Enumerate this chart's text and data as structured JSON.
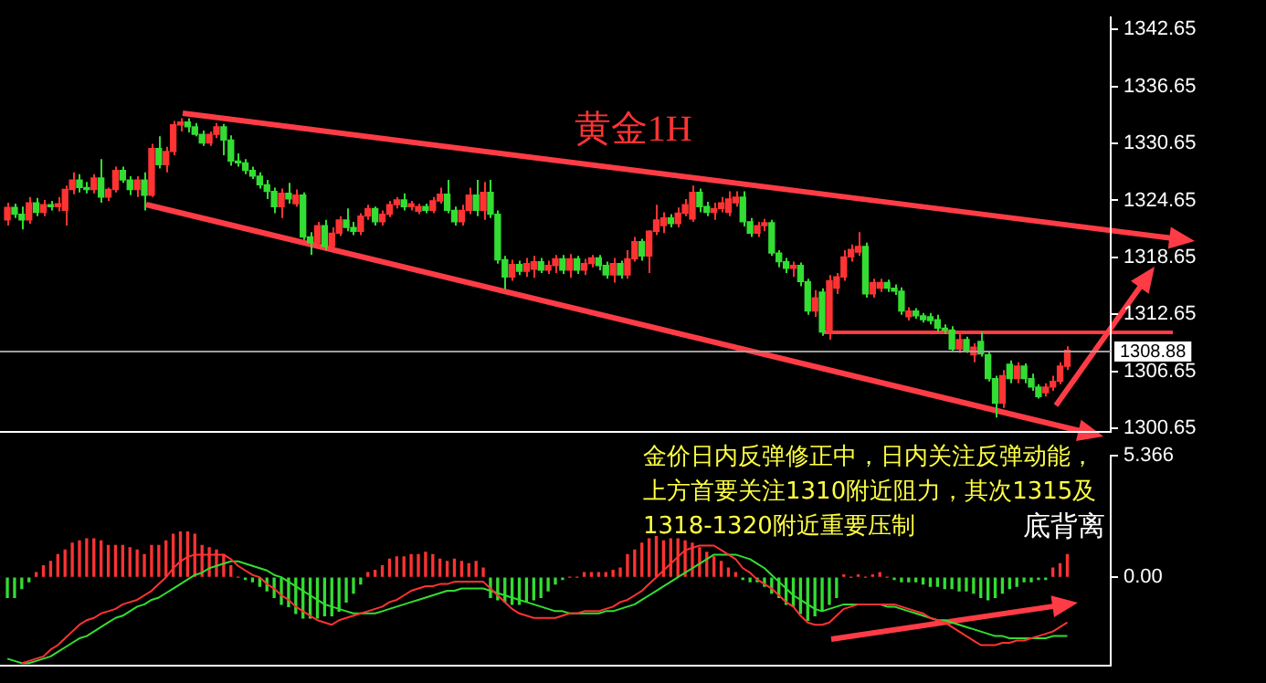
{
  "chart_data": [
    {
      "type": "candlestick",
      "title": "黄金1H",
      "categories": [
        null,
        null,
        null,
        null,
        null,
        null,
        null,
        null,
        null,
        null,
        null,
        null,
        null,
        null,
        null,
        null,
        null,
        null,
        null,
        null,
        null,
        null,
        null,
        null,
        null,
        null,
        null,
        null,
        null,
        null,
        null,
        null,
        null,
        null,
        null,
        null,
        null,
        null,
        null,
        null,
        null,
        null,
        null,
        null,
        null,
        null,
        null,
        null,
        null,
        null,
        null,
        null,
        null,
        null,
        null,
        null,
        null,
        null,
        null,
        null,
        null,
        null,
        null,
        null,
        null,
        null,
        null,
        null,
        null,
        null,
        null,
        null,
        null,
        null,
        null,
        null,
        null,
        null,
        null,
        null,
        null,
        null,
        null,
        null,
        null,
        null,
        null,
        null,
        null,
        null,
        null,
        null,
        null,
        null,
        null,
        null,
        null,
        null,
        null,
        null,
        null,
        null,
        null,
        null,
        null,
        null,
        null,
        null,
        null,
        null,
        null,
        null,
        null,
        null,
        null,
        null,
        null,
        null,
        null,
        null,
        null,
        null,
        null,
        null,
        null,
        null,
        null,
        null,
        null,
        null,
        null,
        null,
        null,
        null,
        null,
        null,
        null,
        null,
        null,
        null,
        null,
        null,
        null,
        null,
        null,
        null,
        null,
        null
      ],
      "ohlc": [
        [
          1322.6,
          1324.4,
          1322.0,
          1323.9
        ],
        [
          1323.9,
          1324.3,
          1322.8,
          1323.2
        ],
        [
          1323.2,
          1324.0,
          1321.6,
          1322.6
        ],
        [
          1322.6,
          1325.0,
          1322.2,
          1324.4
        ],
        [
          1324.4,
          1324.9,
          1323.0,
          1323.4
        ],
        [
          1323.4,
          1324.7,
          1323.0,
          1324.2
        ],
        [
          1324.2,
          1324.6,
          1323.6,
          1324.0
        ],
        [
          1324.0,
          1325.0,
          1323.5,
          1324.3
        ],
        [
          1323.6,
          1326.2,
          1322.0,
          1325.8
        ],
        [
          1325.8,
          1327.6,
          1325.3,
          1326.8
        ],
        [
          1326.8,
          1327.4,
          1325.5,
          1326.0
        ],
        [
          1326.0,
          1326.6,
          1325.4,
          1325.8
        ],
        [
          1325.8,
          1327.4,
          1325.4,
          1327.0
        ],
        [
          1327.0,
          1329.0,
          1324.4,
          1325.0
        ],
        [
          1325.0,
          1326.0,
          1324.6,
          1325.8
        ],
        [
          1325.8,
          1328.2,
          1325.5,
          1327.8
        ],
        [
          1327.8,
          1328.2,
          1326.5,
          1326.8
        ],
        [
          1326.8,
          1327.2,
          1325.2,
          1325.8
        ],
        [
          1325.8,
          1327.2,
          1325.0,
          1326.8
        ],
        [
          1326.8,
          1327.6,
          1323.6,
          1325.2
        ],
        [
          1325.2,
          1330.6,
          1325.0,
          1330.1
        ],
        [
          1330.1,
          1331.4,
          1328.0,
          1328.4
        ],
        [
          1328.4,
          1330.3,
          1327.6,
          1329.8
        ],
        [
          1329.8,
          1333.0,
          1329.4,
          1332.6
        ],
        [
          1332.6,
          1333.3,
          1331.9,
          1332.9
        ],
        [
          1332.9,
          1333.3,
          1331.8,
          1332.4
        ],
        [
          1332.4,
          1332.8,
          1331.4,
          1331.6
        ],
        [
          1331.6,
          1332.0,
          1330.4,
          1330.7
        ],
        [
          1330.7,
          1331.9,
          1330.4,
          1331.6
        ],
        [
          1331.6,
          1332.8,
          1331.2,
          1332.4
        ],
        [
          1332.4,
          1332.7,
          1329.4,
          1331.0
        ],
        [
          1331.0,
          1331.5,
          1328.3,
          1328.8
        ],
        [
          1328.8,
          1329.6,
          1328.2,
          1328.6
        ],
        [
          1328.6,
          1329.0,
          1327.4,
          1327.8
        ],
        [
          1327.8,
          1328.2,
          1326.9,
          1327.2
        ],
        [
          1327.2,
          1327.6,
          1325.9,
          1326.3
        ],
        [
          1326.3,
          1326.8,
          1324.8,
          1325.6
        ],
        [
          1325.6,
          1326.0,
          1323.3,
          1324.0
        ],
        [
          1324.0,
          1325.9,
          1322.8,
          1325.4
        ],
        [
          1325.4,
          1326.5,
          1324.3,
          1324.8
        ],
        [
          1324.3,
          1325.8,
          1324.0,
          1325.2
        ],
        [
          1325.2,
          1325.5,
          1320.5,
          1320.8
        ],
        [
          1320.8,
          1321.3,
          1318.9,
          1320.2
        ],
        [
          1320.2,
          1322.4,
          1319.8,
          1322.0
        ],
        [
          1322.0,
          1322.6,
          1319.4,
          1319.8
        ],
        [
          1319.8,
          1321.8,
          1319.5,
          1321.2
        ],
        [
          1321.2,
          1323.0,
          1320.9,
          1322.6
        ],
        [
          1322.6,
          1323.8,
          1321.4,
          1321.8
        ],
        [
          1321.8,
          1322.4,
          1321.0,
          1321.4
        ],
        [
          1321.4,
          1323.3,
          1321.0,
          1323.0
        ],
        [
          1323.0,
          1324.2,
          1322.6,
          1323.8
        ],
        [
          1323.8,
          1324.0,
          1322.0,
          1322.4
        ],
        [
          1322.4,
          1323.6,
          1322.0,
          1323.2
        ],
        [
          1323.2,
          1324.6,
          1322.9,
          1324.2
        ],
        [
          1324.2,
          1325.0,
          1323.8,
          1324.7
        ],
        [
          1324.7,
          1325.4,
          1323.6,
          1324.0
        ],
        [
          1324.0,
          1324.6,
          1323.6,
          1324.3
        ],
        [
          1323.5,
          1324.3,
          1323.2,
          1324.0
        ],
        [
          1324.0,
          1324.3,
          1323.3,
          1323.6
        ],
        [
          1323.6,
          1325.0,
          1323.3,
          1324.6
        ],
        [
          1324.6,
          1326.0,
          1324.3,
          1325.3
        ],
        [
          1325.3,
          1326.8,
          1323.3,
          1323.6
        ],
        [
          1323.6,
          1324.0,
          1322.0,
          1322.4
        ],
        [
          1322.4,
          1324.2,
          1322.0,
          1323.6
        ],
        [
          1323.6,
          1326.0,
          1323.2,
          1325.2
        ],
        [
          1325.2,
          1326.8,
          1323.0,
          1323.6
        ],
        [
          1323.6,
          1326.6,
          1322.6,
          1325.5
        ],
        [
          1325.5,
          1326.8,
          1322.8,
          1323.2
        ],
        [
          1323.2,
          1323.6,
          1318.0,
          1318.4
        ],
        [
          1318.4,
          1318.8,
          1315.3,
          1316.6
        ],
        [
          1316.6,
          1318.4,
          1316.2,
          1317.9
        ],
        [
          1317.9,
          1318.3,
          1316.8,
          1317.2
        ],
        [
          1317.2,
          1318.6,
          1316.6,
          1318.0
        ],
        [
          1317.4,
          1318.8,
          1316.5,
          1318.2
        ],
        [
          1318.2,
          1318.6,
          1317.0,
          1317.3
        ],
        [
          1317.3,
          1318.3,
          1316.9,
          1317.8
        ],
        [
          1317.8,
          1318.9,
          1317.0,
          1318.5
        ],
        [
          1318.5,
          1318.9,
          1316.9,
          1317.3
        ],
        [
          1317.3,
          1319.0,
          1316.5,
          1318.5
        ],
        [
          1318.5,
          1318.8,
          1316.9,
          1317.3
        ],
        [
          1317.3,
          1318.5,
          1316.8,
          1318.0
        ],
        [
          1318.0,
          1318.9,
          1317.6,
          1318.6
        ],
        [
          1318.6,
          1318.9,
          1317.3,
          1317.8
        ],
        [
          1317.8,
          1318.2,
          1316.4,
          1316.8
        ],
        [
          1316.8,
          1318.6,
          1316.0,
          1318.0
        ],
        [
          1318.0,
          1318.3,
          1316.4,
          1316.8
        ],
        [
          1316.8,
          1319.4,
          1316.4,
          1318.5
        ],
        [
          1318.5,
          1320.8,
          1318.2,
          1320.3
        ],
        [
          1320.3,
          1320.6,
          1318.3,
          1318.8
        ],
        [
          1318.8,
          1321.5,
          1317.0,
          1321.4
        ],
        [
          1321.4,
          1324.2,
          1321.0,
          1322.6
        ],
        [
          1322.0,
          1323.4,
          1321.2,
          1322.8
        ],
        [
          1322.8,
          1323.2,
          1321.8,
          1322.2
        ],
        [
          1322.2,
          1323.9,
          1321.8,
          1323.3
        ],
        [
          1323.3,
          1324.8,
          1323.0,
          1324.2
        ],
        [
          1322.7,
          1326.2,
          1322.4,
          1325.5
        ],
        [
          1325.5,
          1325.9,
          1323.4,
          1324.0
        ],
        [
          1324.0,
          1324.5,
          1323.0,
          1323.4
        ],
        [
          1323.4,
          1324.4,
          1322.6,
          1323.8
        ],
        [
          1323.8,
          1325.0,
          1323.4,
          1324.4
        ],
        [
          1323.4,
          1325.6,
          1323.0,
          1324.8
        ],
        [
          1324.4,
          1325.6,
          1324.0,
          1325.0
        ],
        [
          1325.0,
          1325.6,
          1321.9,
          1322.4
        ],
        [
          1322.4,
          1322.8,
          1320.8,
          1321.2
        ],
        [
          1321.2,
          1322.4,
          1320.8,
          1322.0
        ],
        [
          1322.0,
          1322.7,
          1321.4,
          1322.3
        ],
        [
          1322.3,
          1322.6,
          1318.8,
          1319.1
        ],
        [
          1319.1,
          1319.4,
          1317.6,
          1318.2
        ],
        [
          1318.2,
          1318.6,
          1317.0,
          1317.5
        ],
        [
          1317.5,
          1318.2,
          1316.6,
          1317.8
        ],
        [
          1317.8,
          1318.1,
          1315.6,
          1316.1
        ],
        [
          1316.1,
          1316.4,
          1312.6,
          1313.0
        ],
        [
          1313.0,
          1315.2,
          1312.4,
          1314.4
        ],
        [
          1315.0,
          1315.4,
          1310.4,
          1310.8
        ],
        [
          1310.8,
          1316.8,
          1310.0,
          1316.2
        ],
        [
          1315.4,
          1317.0,
          1314.8,
          1316.6
        ],
        [
          1316.6,
          1319.4,
          1316.2,
          1318.7
        ],
        [
          1318.7,
          1320.0,
          1318.2,
          1319.5
        ],
        [
          1319.2,
          1321.3,
          1318.8,
          1319.8
        ],
        [
          1319.8,
          1320.2,
          1314.4,
          1314.8
        ],
        [
          1314.8,
          1316.4,
          1314.4,
          1316.0
        ],
        [
          1315.4,
          1316.4,
          1315.0,
          1316.0
        ],
        [
          1316.0,
          1316.3,
          1315.0,
          1315.4
        ],
        [
          1315.4,
          1315.8,
          1314.7,
          1315.1
        ],
        [
          1315.1,
          1315.5,
          1312.6,
          1313.0
        ],
        [
          1312.4,
          1313.4,
          1312.0,
          1313.0
        ],
        [
          1313.0,
          1313.3,
          1312.2,
          1312.5
        ],
        [
          1312.5,
          1312.8,
          1311.8,
          1312.1
        ],
        [
          1312.4,
          1312.8,
          1311.6,
          1312.0
        ],
        [
          1312.1,
          1312.6,
          1310.8,
          1311.2
        ],
        [
          1311.2,
          1311.6,
          1310.6,
          1311.0
        ],
        [
          1311.0,
          1311.4,
          1308.8,
          1309.0
        ],
        [
          1309.0,
          1310.8,
          1308.6,
          1310.0
        ],
        [
          1310.0,
          1310.3,
          1308.6,
          1308.8
        ],
        [
          1308.4,
          1309.6,
          1307.6,
          1309.2
        ],
        [
          1309.8,
          1310.8,
          1308.2,
          1308.5
        ],
        [
          1308.4,
          1308.8,
          1305.6,
          1305.9
        ],
        [
          1305.9,
          1306.2,
          1301.8,
          1303.3
        ],
        [
          1303.3,
          1306.8,
          1302.8,
          1306.2
        ],
        [
          1307.4,
          1307.8,
          1305.4,
          1305.9
        ],
        [
          1305.9,
          1307.6,
          1305.4,
          1307.2
        ],
        [
          1307.2,
          1307.5,
          1305.4,
          1305.9
        ],
        [
          1305.9,
          1306.4,
          1304.6,
          1305.0
        ],
        [
          1305.0,
          1305.3,
          1303.8,
          1304.0
        ],
        [
          1304.4,
          1305.4,
          1304.0,
          1305.0
        ],
        [
          1305.0,
          1306.2,
          1304.6,
          1305.6
        ],
        [
          1305.6,
          1307.6,
          1305.3,
          1307.2
        ],
        [
          1307.2,
          1309.3,
          1306.8,
          1308.88
        ]
      ],
      "colors": [
        "#ff3333",
        "#33dd33",
        "#33dd33",
        "#ff3333",
        "#33dd33",
        "#ff3333",
        "#33dd33",
        "#ff3333",
        "#ff3333",
        "#ff3333",
        "#33dd33",
        "#33dd33",
        "#ff3333",
        "#33dd33",
        "#ff3333",
        "#ff3333",
        "#33dd33",
        "#33dd33",
        "#ff3333",
        "#33dd33",
        "#ff3333",
        "#33dd33",
        "#ff3333",
        "#ff3333",
        "#ff3333",
        "#33dd33",
        "#33dd33",
        "#33dd33",
        "#ff3333",
        "#ff3333",
        "#33dd33",
        "#33dd33",
        "#33dd33",
        "#33dd33",
        "#33dd33",
        "#33dd33",
        "#33dd33",
        "#33dd33",
        "#ff3333",
        "#33dd33",
        "#ff3333",
        "#33dd33",
        "#33dd33",
        "#ff3333",
        "#33dd33",
        "#ff3333",
        "#ff3333",
        "#33dd33",
        "#33dd33",
        "#ff3333",
        "#ff3333",
        "#33dd33",
        "#ff3333",
        "#ff3333",
        "#ff3333",
        "#33dd33",
        "#ff3333",
        "#ff3333",
        "#33dd33",
        "#ff3333",
        "#ff3333",
        "#33dd33",
        "#33dd33",
        "#ff3333",
        "#ff3333",
        "#33dd33",
        "#ff3333",
        "#33dd33",
        "#33dd33",
        "#33dd33",
        "#ff3333",
        "#33dd33",
        "#ff3333",
        "#ff3333",
        "#33dd33",
        "#ff3333",
        "#ff3333",
        "#33dd33",
        "#ff3333",
        "#33dd33",
        "#ff3333",
        "#ff3333",
        "#33dd33",
        "#33dd33",
        "#ff3333",
        "#33dd33",
        "#ff3333",
        "#ff3333",
        "#33dd33",
        "#ff3333",
        "#ff3333",
        "#ff3333",
        "#33dd33",
        "#ff3333",
        "#ff3333",
        "#ff3333",
        "#33dd33",
        "#33dd33",
        "#ff3333",
        "#ff3333",
        "#ff3333",
        "#ff3333",
        "#33dd33",
        "#33dd33",
        "#ff3333",
        "#ff3333",
        "#33dd33",
        "#33dd33",
        "#33dd33",
        "#ff3333",
        "#33dd33",
        "#33dd33",
        "#ff3333",
        "#33dd33",
        "#ff3333",
        "#ff3333",
        "#ff3333",
        "#ff3333",
        "#ff3333",
        "#33dd33",
        "#ff3333",
        "#ff3333",
        "#33dd33",
        "#33dd33",
        "#33dd33",
        "#ff3333",
        "#33dd33",
        "#33dd33",
        "#33dd33",
        "#33dd33",
        "#33dd33",
        "#33dd33",
        "#ff3333",
        "#33dd33",
        "#ff3333",
        "#33dd33",
        "#33dd33",
        "#33dd33",
        "#ff3333",
        "#33dd33",
        "#ff3333",
        "#33dd33",
        "#33dd33",
        "#33dd33",
        "#ff3333",
        "#ff3333",
        "#ff3333",
        "#ff3333"
      ],
      "ylim": [
        1300.3,
        1343.9
      ],
      "yticks": [
        1300.65,
        1306.65,
        1312.65,
        1318.65,
        1324.65,
        1330.65,
        1336.65,
        1342.65
      ],
      "ref_lines": [
        {
          "axis": "y",
          "value": 1308.88,
          "label": "1308.88",
          "color": "#a0a0a0"
        }
      ]
    },
    {
      "type": "bar",
      "categories": [
        null,
        null,
        null,
        null,
        null,
        null,
        null,
        null,
        null,
        null,
        null,
        null,
        null,
        null,
        null,
        null,
        null,
        null,
        null,
        null,
        null,
        null,
        null,
        null,
        null,
        null,
        null,
        null,
        null,
        null,
        null,
        null,
        null,
        null,
        null,
        null,
        null,
        null,
        null,
        null,
        null,
        null,
        null,
        null,
        null,
        null,
        null,
        null,
        null,
        null,
        null,
        null,
        null,
        null,
        null,
        null,
        null,
        null,
        null,
        null,
        null,
        null,
        null,
        null,
        null,
        null,
        null,
        null,
        null,
        null,
        null,
        null,
        null,
        null,
        null,
        null,
        null,
        null,
        null,
        null,
        null,
        null,
        null,
        null,
        null,
        null,
        null,
        null,
        null,
        null,
        null,
        null,
        null,
        null,
        null,
        null,
        null,
        null,
        null,
        null,
        null,
        null,
        null,
        null,
        null,
        null,
        null,
        null,
        null,
        null,
        null,
        null,
        null,
        null,
        null,
        null,
        null,
        null,
        null,
        null,
        null,
        null,
        null,
        null,
        null,
        null,
        null,
        null,
        null,
        null,
        null,
        null,
        null,
        null,
        null,
        null,
        null,
        null,
        null,
        null,
        null,
        null,
        null,
        null,
        null,
        null,
        null,
        null
      ],
      "series": [
        {
          "type": "bar",
          "values": [
            -0.9,
            -0.9,
            -0.5,
            -0.2,
            0.2,
            0.5,
            0.7,
            1.0,
            1.2,
            1.5,
            1.6,
            1.7,
            1.7,
            1.6,
            1.4,
            1.4,
            1.4,
            1.3,
            1.2,
            1.0,
            1.4,
            1.4,
            1.6,
            1.9,
            2.0,
            2.0,
            1.9,
            1.4,
            1.3,
            1.2,
            1.0,
            0.5,
            0.0,
            -0.1,
            -0.2,
            -0.4,
            -0.6,
            -0.9,
            -1.2,
            -1.3,
            -1.6,
            -1.8,
            -1.8,
            -1.8,
            -1.7,
            -1.7,
            -1.5,
            -1.1,
            -0.7,
            -0.3,
            0.2,
            0.3,
            0.5,
            0.8,
            0.9,
            0.9,
            1.0,
            1.0,
            1.1,
            1.0,
            0.8,
            0.7,
            0.8,
            0.7,
            0.6,
            0.7,
            0.4,
            -0.9,
            -1.0,
            -1.1,
            -1.2,
            -1.2,
            -1.1,
            -1.0,
            -0.9,
            -0.6,
            -0.3,
            -0.1,
            0.0,
            0.0,
            0.2,
            0.2,
            0.2,
            0.2,
            0.3,
            0.4,
            1.0,
            1.2,
            1.5,
            1.7,
            1.8,
            1.6,
            1.7,
            1.7,
            1.6,
            1.5,
            1.3,
            1.1,
            0.9,
            0.7,
            0.4,
            0.2,
            -0.1,
            -0.2,
            -0.2,
            -0.4,
            -0.7,
            -0.9,
            -1.2,
            -1.3,
            -1.6,
            -1.9,
            -1.7,
            -1.5,
            -1.2,
            -0.9,
            0.1,
            0.0,
            0.1,
            0.0,
            0.1,
            0.2,
            0.0,
            -0.1,
            -0.2,
            -0.2,
            -0.2,
            -0.3,
            -0.4,
            -0.4,
            -0.5,
            -0.5,
            -0.6,
            -0.6,
            -0.7,
            -0.9,
            -1.0,
            -0.9,
            -0.7,
            -0.5,
            -0.4,
            -0.2,
            -0.2,
            -0.1,
            -0.1,
            0.4,
            0.6,
            1.0
          ],
          "colors": [
            "#33dd33",
            "#33dd33",
            "#33dd33",
            "#33dd33",
            "#ff3333",
            "#ff3333",
            "#ff3333",
            "#ff3333",
            "#ff3333",
            "#ff3333",
            "#ff3333",
            "#ff3333",
            "#ff3333",
            "#ff3333",
            "#ff3333",
            "#ff3333",
            "#ff3333",
            "#ff3333",
            "#ff3333",
            "#ff3333",
            "#ff3333",
            "#ff3333",
            "#ff3333",
            "#ff3333",
            "#ff3333",
            "#ff3333",
            "#ff3333",
            "#ff3333",
            "#ff3333",
            "#ff3333",
            "#ff3333",
            "#ff3333",
            "#ff3333",
            "#33dd33",
            "#33dd33",
            "#33dd33",
            "#33dd33",
            "#33dd33",
            "#33dd33",
            "#33dd33",
            "#33dd33",
            "#33dd33",
            "#33dd33",
            "#33dd33",
            "#33dd33",
            "#33dd33",
            "#33dd33",
            "#33dd33",
            "#33dd33",
            "#33dd33",
            "#ff3333",
            "#ff3333",
            "#ff3333",
            "#ff3333",
            "#ff3333",
            "#ff3333",
            "#ff3333",
            "#ff3333",
            "#ff3333",
            "#ff3333",
            "#ff3333",
            "#ff3333",
            "#ff3333",
            "#ff3333",
            "#ff3333",
            "#ff3333",
            "#ff3333",
            "#33dd33",
            "#33dd33",
            "#33dd33",
            "#33dd33",
            "#33dd33",
            "#33dd33",
            "#33dd33",
            "#33dd33",
            "#33dd33",
            "#33dd33",
            "#33dd33",
            "#ff3333",
            "#ff3333",
            "#ff3333",
            "#ff3333",
            "#ff3333",
            "#ff3333",
            "#ff3333",
            "#ff3333",
            "#ff3333",
            "#ff3333",
            "#ff3333",
            "#ff3333",
            "#ff3333",
            "#ff3333",
            "#ff3333",
            "#ff3333",
            "#ff3333",
            "#ff3333",
            "#ff3333",
            "#ff3333",
            "#ff3333",
            "#ff3333",
            "#ff3333",
            "#ff3333",
            "#33dd33",
            "#33dd33",
            "#33dd33",
            "#33dd33",
            "#33dd33",
            "#33dd33",
            "#33dd33",
            "#33dd33",
            "#33dd33",
            "#33dd33",
            "#33dd33",
            "#33dd33",
            "#33dd33",
            "#33dd33",
            "#ff3333",
            "#ff3333",
            "#ff3333",
            "#ff3333",
            "#ff3333",
            "#ff3333",
            "#ff3333",
            "#33dd33",
            "#33dd33",
            "#33dd33",
            "#33dd33",
            "#33dd33",
            "#33dd33",
            "#33dd33",
            "#33dd33",
            "#33dd33",
            "#33dd33",
            "#33dd33",
            "#33dd33",
            "#33dd33",
            "#33dd33",
            "#33dd33",
            "#33dd33",
            "#33dd33",
            "#33dd33",
            "#33dd33",
            "#33dd33",
            "#33dd33",
            "#33dd33",
            "#ff3333",
            "#ff3333",
            "#ff3333"
          ]
        },
        {
          "type": "line",
          "color": "#ff3333",
          "values": [
            null,
            null,
            -3.8,
            -3.7,
            -3.6,
            -3.5,
            -3.2,
            -3.0,
            -2.7,
            -2.4,
            -2.1,
            -1.9,
            -1.8,
            -1.6,
            -1.5,
            -1.4,
            -1.2,
            -1.1,
            -1.0,
            -0.8,
            -0.6,
            -0.3,
            0.0,
            0.4,
            0.7,
            0.9,
            1.0,
            1.0,
            1.0,
            1.0,
            1.0,
            0.8,
            0.5,
            0.3,
            0.1,
            0.0,
            -0.3,
            -0.5,
            -0.8,
            -1.0,
            -1.3,
            -1.5,
            -1.7,
            -1.9,
            -2.0,
            -2.1,
            -1.9,
            -1.8,
            -1.7,
            -1.6,
            -1.5,
            -1.4,
            -1.3,
            -1.1,
            -1.0,
            -0.8,
            -0.6,
            -0.5,
            -0.4,
            -0.4,
            -0.3,
            -0.3,
            -0.2,
            -0.2,
            -0.2,
            -0.2,
            -0.2,
            -0.5,
            -0.8,
            -1.1,
            -1.4,
            -1.6,
            -1.7,
            -1.8,
            -1.8,
            -1.8,
            -1.8,
            -1.7,
            -1.6,
            -1.6,
            -1.5,
            -1.5,
            -1.5,
            -1.4,
            -1.3,
            -1.1,
            -1.0,
            -0.8,
            -0.6,
            -0.3,
            0.0,
            0.3,
            0.6,
            0.9,
            1.2,
            1.3,
            1.4,
            1.4,
            1.4,
            1.2,
            1.0,
            0.8,
            0.4,
            0.2,
            -0.1,
            -0.3,
            -0.5,
            -0.8,
            -1.1,
            -1.3,
            -1.7,
            -2.0,
            -2.1,
            -2.1,
            -2.0,
            -1.7,
            -1.4,
            -1.3,
            -1.2,
            -1.2,
            -1.2,
            -1.2,
            -1.2,
            -1.2,
            -1.3,
            -1.4,
            -1.5,
            -1.6,
            -1.8,
            -1.9,
            -2.0,
            -2.2,
            -2.4,
            -2.6,
            -2.8,
            -3.0,
            -3.0,
            -3.0,
            -2.9,
            -2.9,
            -2.8,
            -2.8,
            -2.7,
            -2.6,
            -2.5,
            -2.4,
            -2.2,
            -2.0
          ]
        },
        {
          "type": "line",
          "color": "#33dd33",
          "values": [
            -3.6,
            -3.7,
            -3.8,
            -3.8,
            -3.7,
            -3.6,
            -3.5,
            -3.3,
            -3.1,
            -2.9,
            -2.7,
            -2.6,
            -2.4,
            -2.2,
            -2.0,
            -1.8,
            -1.7,
            -1.5,
            -1.3,
            -1.2,
            -1.0,
            -0.9,
            -0.7,
            -0.5,
            -0.3,
            -0.1,
            0.1,
            0.2,
            0.4,
            0.5,
            0.6,
            0.7,
            0.7,
            0.6,
            0.5,
            0.4,
            0.3,
            0.1,
            0.0,
            -0.2,
            -0.4,
            -0.6,
            -0.8,
            -1.0,
            -1.2,
            -1.3,
            -1.4,
            -1.5,
            -1.6,
            -1.6,
            -1.6,
            -1.6,
            -1.5,
            -1.4,
            -1.3,
            -1.2,
            -1.1,
            -1.0,
            -0.9,
            -0.8,
            -0.7,
            -0.6,
            -0.6,
            -0.5,
            -0.5,
            -0.5,
            -0.5,
            -0.6,
            -0.7,
            -0.8,
            -0.9,
            -1.0,
            -1.1,
            -1.2,
            -1.3,
            -1.4,
            -1.5,
            -1.5,
            -1.6,
            -1.6,
            -1.6,
            -1.6,
            -1.6,
            -1.5,
            -1.5,
            -1.4,
            -1.3,
            -1.2,
            -1.0,
            -0.8,
            -0.6,
            -0.4,
            -0.2,
            0.0,
            0.2,
            0.4,
            0.6,
            0.8,
            1.0,
            1.0,
            1.0,
            1.0,
            0.9,
            0.8,
            0.6,
            0.4,
            0.1,
            -0.2,
            -0.5,
            -0.8,
            -1.0,
            -1.2,
            -1.4,
            -1.5,
            -1.4,
            -1.3,
            -1.2,
            -1.2,
            -1.2,
            -1.2,
            -1.2,
            -1.2,
            -1.3,
            -1.3,
            -1.4,
            -1.5,
            -1.6,
            -1.7,
            -1.8,
            -1.9,
            -1.9,
            -2.0,
            -2.1,
            -2.2,
            -2.3,
            -2.4,
            -2.5,
            -2.6,
            -2.6,
            -2.7,
            -2.7,
            -2.7,
            -2.7,
            -2.7,
            -2.7,
            -2.6,
            -2.6,
            -2.6
          ]
        }
      ],
      "ylim": [
        -3.9,
        5.366
      ],
      "yticks": [
        5.366,
        {
          "value": 0,
          "label": "0.00"
        }
      ],
      "annotations": [
        "金价日内反弹修正中，日内关注反弹动能，",
        "上方首要关注1310附近阻力，其次1315及",
        "1318-1320附近重要压制",
        "底背离"
      ]
    }
  ]
}
